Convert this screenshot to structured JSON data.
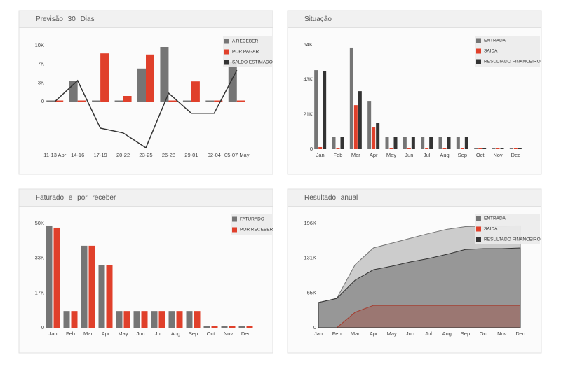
{
  "chart_data": [
    {
      "type": "bar",
      "title": "Previsão 30 Dias",
      "categories": [
        "11-13 Apr",
        "14-16",
        "17-19",
        "20-22",
        "23-25",
        "26-28",
        "29-01",
        "02-04",
        "05-07 May"
      ],
      "series": [
        {
          "name": "A RECEBER",
          "color": "#757575",
          "values": [
            0,
            3750,
            0,
            0,
            5900,
            9750,
            0,
            0,
            7100
          ]
        },
        {
          "name": "POR PAGAR",
          "color": "#e0402b",
          "values": [
            0,
            0,
            8600,
            1000,
            8400,
            0,
            3600,
            0,
            0
          ]
        },
        {
          "name": "SALDO ESTIMADO",
          "color": "#333333",
          "type": "line",
          "values": [
            0,
            3750,
            -4750,
            -5600,
            -8250,
            1500,
            -2100,
            -2100,
            5600
          ]
        }
      ],
      "ylim": [
        -8500,
        10500
      ],
      "yticks": [
        0,
        {
          "value": 3333,
          "label": "3K"
        },
        {
          "value": 6667,
          "label": "7K"
        },
        {
          "value": 10000,
          "label": "10K"
        }
      ],
      "legend": "top-right"
    },
    {
      "type": "bar",
      "title": "Situação",
      "categories": [
        "Jan",
        "Feb",
        "Mar",
        "Apr",
        "May",
        "Jun",
        "Jul",
        "Aug",
        "Sep",
        "Oct",
        "Nov",
        "Dec"
      ],
      "series": [
        {
          "name": "ENTRADA",
          "color": "#757575",
          "values": [
            48500,
            7700,
            62300,
            29600,
            7700,
            7700,
            7700,
            7700,
            7700,
            500,
            500,
            500
          ]
        },
        {
          "name": "SAIDA",
          "color": "#e0402b",
          "values": [
            1300,
            0,
            27000,
            13300,
            300,
            300,
            300,
            300,
            300,
            300,
            300,
            300
          ]
        },
        {
          "name": "RESULTADO FINANCEIRO",
          "color": "#333333",
          "values": [
            47700,
            7700,
            35600,
            16300,
            7700,
            7700,
            7700,
            7700,
            7700,
            500,
            500,
            500
          ]
        }
      ],
      "ylim": [
        0,
        64000
      ],
      "yticks": [
        0,
        {
          "value": 21333,
          "label": "21K"
        },
        {
          "value": 42667,
          "label": "43K"
        },
        {
          "value": 64000,
          "label": "64K"
        }
      ],
      "legend": "top-right"
    },
    {
      "type": "bar",
      "title": "Faturado e por receber",
      "categories": [
        "Jan",
        "Feb",
        "Mar",
        "Apr",
        "May",
        "Jun",
        "Jul",
        "Aug",
        "Sep",
        "Oct",
        "Nov",
        "Dec"
      ],
      "series": [
        {
          "name": "FATURADO",
          "color": "#757575",
          "values": [
            49000,
            8000,
            39300,
            30200,
            8000,
            8000,
            8000,
            8000,
            8000,
            1000,
            1000,
            1000
          ]
        },
        {
          "name": "POR RECEBER",
          "color": "#e0402b",
          "values": [
            48000,
            8000,
            39300,
            30200,
            8000,
            8000,
            8000,
            8000,
            8000,
            1000,
            1000,
            1000
          ]
        }
      ],
      "ylim": [
        0,
        50000
      ],
      "yticks": [
        0,
        {
          "value": 16667,
          "label": "17K"
        },
        {
          "value": 33333,
          "label": "33K"
        },
        {
          "value": 50000,
          "label": "50K"
        }
      ],
      "legend": "top-right"
    },
    {
      "type": "area",
      "title": "Resultado anual",
      "categories": [
        "Jan",
        "Feb",
        "Mar",
        "Apr",
        "May",
        "Jun",
        "Jul",
        "Aug",
        "Sep",
        "Oct",
        "Nov",
        "Dec"
      ],
      "series": [
        {
          "name": "ENTRADA",
          "color": "#757575",
          "values": [
            47300,
            55200,
            118400,
            150000,
            159000,
            168000,
            177000,
            185000,
            190000,
            191000,
            191000,
            191500
          ]
        },
        {
          "name": "SAIDA",
          "color": "#e0402b",
          "values": [
            0,
            0,
            29000,
            42000,
            42000,
            42000,
            42000,
            42000,
            42000,
            42000,
            42000,
            42000
          ]
        },
        {
          "name": "RESULTADO FINANCEIRO",
          "color": "#333333",
          "values": [
            47300,
            55000,
            89400,
            109000,
            115700,
            123600,
            130000,
            138000,
            147000,
            148600,
            148600,
            150000
          ]
        }
      ],
      "ylim": [
        0,
        196000
      ],
      "yticks": [
        0,
        {
          "value": 65333,
          "label": "65K"
        },
        {
          "value": 130667,
          "label": "131K"
        },
        {
          "value": 196000,
          "label": "196K"
        }
      ],
      "legend": "top-right"
    }
  ]
}
